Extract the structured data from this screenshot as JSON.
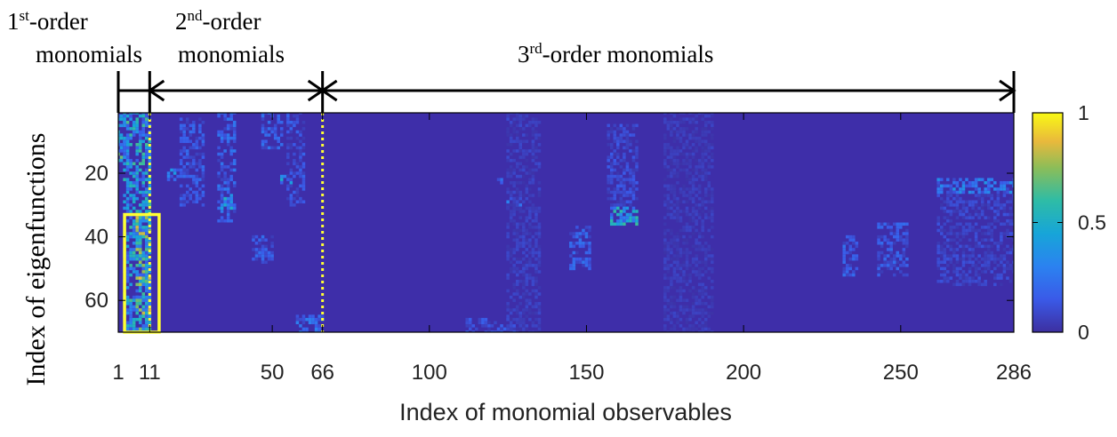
{
  "chart_data": {
    "type": "heatmap",
    "xlabel": "Index of monomial observables",
    "ylabel": "Index of eigenfunctions",
    "xlim": [
      1,
      286
    ],
    "ylim": [
      1,
      70
    ],
    "y_direction": "top-to-bottom",
    "x_ticks": [
      1,
      11,
      50,
      66,
      100,
      150,
      200,
      250,
      286
    ],
    "y_ticks": [
      20,
      40,
      60
    ],
    "colorbar": {
      "min": 0,
      "max": 1,
      "ticks": [
        "0",
        "0.5",
        "1"
      ],
      "colormap": "parula"
    },
    "background_value": 0.02,
    "groups": [
      {
        "base": "1",
        "sup": "st",
        "rest": "-order",
        "line2": "monomials",
        "x_start": 1,
        "x_end": 11
      },
      {
        "base": "2",
        "sup": "nd",
        "rest": "-order",
        "line2": "monomials",
        "x_start": 11,
        "x_end": 66
      },
      {
        "base": "3",
        "sup": "rd",
        "rest": "-order monomials",
        "line2": "",
        "x_start": 66,
        "x_end": 286
      }
    ],
    "separators_x": [
      11,
      66
    ],
    "highlight_box": {
      "x": [
        3,
        14
      ],
      "y": [
        33,
        70
      ],
      "color": "#ffff33"
    },
    "regions": [
      {
        "x": [
          1,
          4
        ],
        "y": [
          1,
          16
        ],
        "value": 0.45
      },
      {
        "x": [
          3,
          11
        ],
        "y": [
          1,
          70
        ],
        "value": 0.4
      },
      {
        "x": [
          7,
          11
        ],
        "y": [
          34,
          70
        ],
        "value": 0.55
      },
      {
        "x": [
          17,
          20
        ],
        "y": [
          19,
          22
        ],
        "value": 0.25
      },
      {
        "x": [
          21,
          28
        ],
        "y": [
          3,
          30
        ],
        "value": 0.14
      },
      {
        "x": [
          33,
          38
        ],
        "y": [
          1,
          35
        ],
        "value": 0.18
      },
      {
        "x": [
          34,
          37
        ],
        "y": [
          27,
          31
        ],
        "value": 0.38
      },
      {
        "x": [
          44,
          50
        ],
        "y": [
          40,
          48
        ],
        "value": 0.15
      },
      {
        "x": [
          47,
          53
        ],
        "y": [
          1,
          12
        ],
        "value": 0.16
      },
      {
        "x": [
          53,
          56
        ],
        "y": [
          21,
          23
        ],
        "value": 0.35
      },
      {
        "x": [
          55,
          60
        ],
        "y": [
          1,
          30
        ],
        "value": 0.12
      },
      {
        "x": [
          58,
          66
        ],
        "y": [
          65,
          70
        ],
        "value": 0.2
      },
      {
        "x": [
          112,
          130
        ],
        "y": [
          66,
          70
        ],
        "value": 0.12
      },
      {
        "x": [
          122,
          123
        ],
        "y": [
          22,
          25
        ],
        "value": 0.35
      },
      {
        "x": [
          125,
          129
        ],
        "y": [
          27,
          31
        ],
        "value": 0.28
      },
      {
        "x": [
          145,
          151
        ],
        "y": [
          37,
          50
        ],
        "value": 0.16
      },
      {
        "x": [
          157,
          166
        ],
        "y": [
          5,
          30
        ],
        "value": 0.1
      },
      {
        "x": [
          157,
          166
        ],
        "y": [
          31,
          36
        ],
        "value": 0.4
      },
      {
        "x": [
          232,
          236
        ],
        "y": [
          40,
          52
        ],
        "value": 0.16
      },
      {
        "x": [
          243,
          252
        ],
        "y": [
          36,
          52
        ],
        "value": 0.14
      },
      {
        "x": [
          262,
          286
        ],
        "y": [
          22,
          26
        ],
        "value": 0.24
      },
      {
        "x": [
          262,
          286
        ],
        "y": [
          27,
          55
        ],
        "value": 0.08
      },
      {
        "x": [
          125,
          135
        ],
        "y": [
          1,
          70
        ],
        "value": 0.06
      },
      {
        "x": [
          175,
          190
        ],
        "y": [
          1,
          70
        ],
        "value": 0.05
      }
    ]
  }
}
